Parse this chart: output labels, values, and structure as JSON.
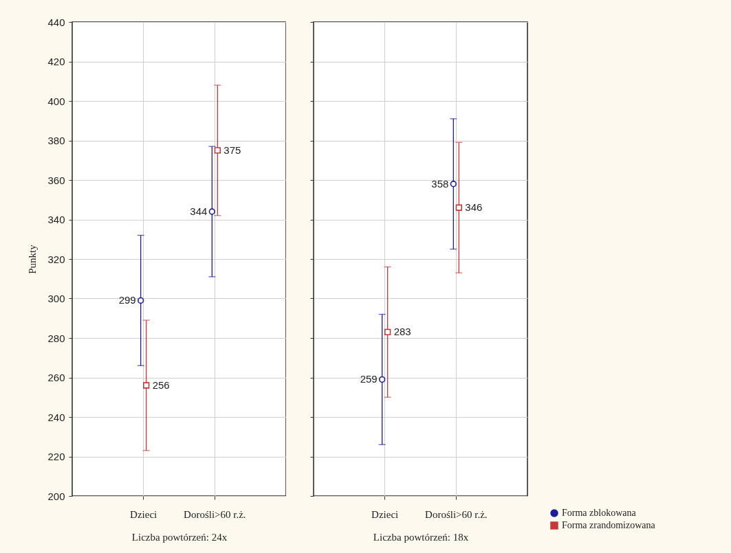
{
  "chart_data": [
    {
      "type": "scatter",
      "categories": [
        "Dzieci",
        "Dorośli>60 r.ż."
      ],
      "xlabel": "Liczba powtórzeń: 24x",
      "ylabel": "Punkty",
      "ylim": [
        200,
        440
      ],
      "yticks": [
        200,
        220,
        240,
        260,
        280,
        300,
        320,
        340,
        360,
        380,
        400,
        420,
        440
      ],
      "grid": true,
      "legend": false,
      "data_labels": true,
      "series": [
        {
          "color": "#1c1c9c",
          "marker": "circle",
          "values": [
            299,
            344
          ],
          "errors": [
            33,
            33
          ]
        },
        {
          "color": "#c43a3a",
          "marker": "square",
          "values": [
            256,
            375
          ],
          "errors": [
            33,
            33
          ]
        }
      ]
    },
    {
      "type": "scatter",
      "categories": [
        "Dzieci",
        "Dorośli>60 r.ż."
      ],
      "xlabel": "Liczba powtórzeń: 18x",
      "ylim": [
        200,
        440
      ],
      "yticks": [
        200,
        220,
        240,
        260,
        280,
        300,
        320,
        340,
        360,
        380,
        400,
        420,
        440
      ],
      "tick_labels": "x",
      "grid": true,
      "legend": "bottom right",
      "data_labels": true,
      "series": [
        {
          "name": "Forma zblokowana",
          "color": "#1c1c9c",
          "marker": "circle",
          "values": [
            259,
            358
          ],
          "errors": [
            33,
            33
          ]
        },
        {
          "name": "Forma zrandomizowana",
          "color": "#c43a3a",
          "marker": "square",
          "values": [
            283,
            346
          ],
          "errors": [
            33,
            33
          ]
        }
      ]
    }
  ]
}
